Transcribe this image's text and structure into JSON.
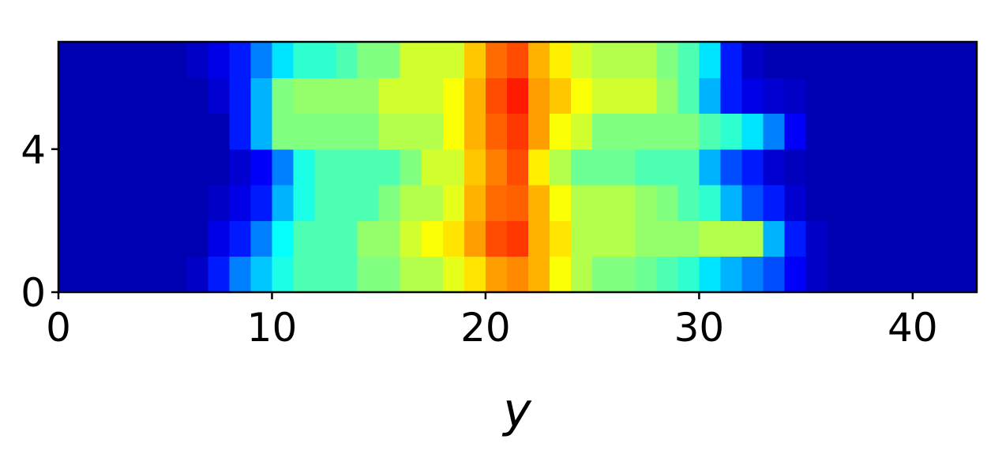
{
  "chart_data": {
    "type": "heatmap",
    "colormap": "jet",
    "vmin": 0,
    "vmax": 1,
    "xlabel": "y",
    "xlim": [
      0,
      43
    ],
    "ylim": [
      0,
      7
    ],
    "xticks": [
      0,
      10,
      20,
      30,
      40
    ],
    "yticks": [
      0,
      4
    ],
    "z": [
      [
        0.05,
        0.05,
        0.05,
        0.05,
        0.05,
        0.05,
        0.07,
        0.15,
        0.25,
        0.32,
        0.4,
        0.45,
        0.45,
        0.45,
        0.5,
        0.5,
        0.55,
        0.55,
        0.6,
        0.65,
        0.72,
        0.74,
        0.7,
        0.62,
        0.55,
        0.5,
        0.5,
        0.48,
        0.45,
        0.42,
        0.35,
        0.3,
        0.25,
        0.2,
        0.12,
        0.07,
        0.05,
        0.05,
        0.05,
        0.05,
        0.05,
        0.05,
        0.05
      ],
      [
        0.05,
        0.05,
        0.05,
        0.05,
        0.05,
        0.05,
        0.05,
        0.1,
        0.15,
        0.25,
        0.38,
        0.45,
        0.45,
        0.45,
        0.52,
        0.52,
        0.58,
        0.62,
        0.65,
        0.72,
        0.8,
        0.82,
        0.7,
        0.65,
        0.55,
        0.55,
        0.55,
        0.52,
        0.52,
        0.52,
        0.55,
        0.55,
        0.55,
        0.3,
        0.15,
        0.07,
        0.05,
        0.05,
        0.05,
        0.05,
        0.05,
        0.05,
        0.05
      ],
      [
        0.05,
        0.05,
        0.05,
        0.05,
        0.05,
        0.05,
        0.05,
        0.07,
        0.1,
        0.15,
        0.3,
        0.4,
        0.45,
        0.45,
        0.45,
        0.5,
        0.55,
        0.55,
        0.6,
        0.7,
        0.77,
        0.78,
        0.7,
        0.62,
        0.55,
        0.55,
        0.55,
        0.52,
        0.5,
        0.45,
        0.42,
        0.3,
        0.2,
        0.15,
        0.08,
        0.05,
        0.05,
        0.05,
        0.05,
        0.05,
        0.05,
        0.05,
        0.05
      ],
      [
        0.05,
        0.05,
        0.05,
        0.05,
        0.05,
        0.05,
        0.05,
        0.05,
        0.08,
        0.12,
        0.25,
        0.4,
        0.45,
        0.45,
        0.45,
        0.45,
        0.5,
        0.58,
        0.58,
        0.68,
        0.75,
        0.8,
        0.64,
        0.55,
        0.48,
        0.48,
        0.48,
        0.45,
        0.45,
        0.45,
        0.3,
        0.2,
        0.15,
        0.08,
        0.06,
        0.05,
        0.05,
        0.05,
        0.05,
        0.05,
        0.05,
        0.05,
        0.05
      ],
      [
        0.05,
        0.05,
        0.05,
        0.05,
        0.05,
        0.05,
        0.05,
        0.05,
        0.15,
        0.3,
        0.5,
        0.5,
        0.5,
        0.5,
        0.5,
        0.55,
        0.55,
        0.55,
        0.62,
        0.7,
        0.78,
        0.82,
        0.72,
        0.62,
        0.58,
        0.5,
        0.5,
        0.5,
        0.5,
        0.5,
        0.45,
        0.42,
        0.35,
        0.25,
        0.12,
        0.05,
        0.05,
        0.05,
        0.05,
        0.05,
        0.05,
        0.05,
        0.05
      ],
      [
        0.05,
        0.05,
        0.05,
        0.05,
        0.05,
        0.05,
        0.05,
        0.08,
        0.15,
        0.3,
        0.5,
        0.52,
        0.52,
        0.52,
        0.52,
        0.58,
        0.58,
        0.58,
        0.62,
        0.7,
        0.8,
        0.85,
        0.72,
        0.68,
        0.62,
        0.58,
        0.58,
        0.58,
        0.52,
        0.45,
        0.3,
        0.15,
        0.1,
        0.08,
        0.07,
        0.05,
        0.05,
        0.05,
        0.05,
        0.05,
        0.05,
        0.05,
        0.05
      ],
      [
        0.05,
        0.05,
        0.05,
        0.05,
        0.05,
        0.05,
        0.07,
        0.1,
        0.15,
        0.25,
        0.35,
        0.42,
        0.42,
        0.45,
        0.5,
        0.5,
        0.58,
        0.58,
        0.58,
        0.68,
        0.77,
        0.8,
        0.7,
        0.64,
        0.58,
        0.55,
        0.55,
        0.55,
        0.5,
        0.45,
        0.35,
        0.15,
        0.07,
        0.05,
        0.05,
        0.05,
        0.05,
        0.05,
        0.05,
        0.05,
        0.05,
        0.05,
        0.05
      ]
    ]
  }
}
